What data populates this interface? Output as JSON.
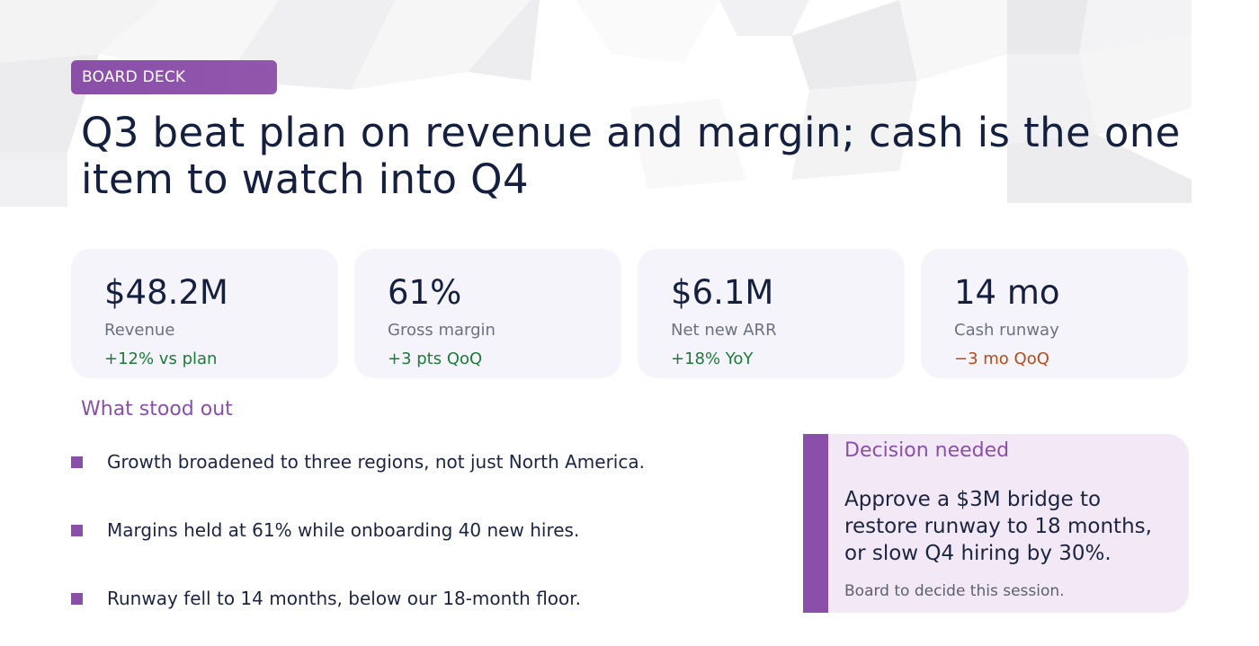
{
  "tag": "BOARD DECK",
  "headline": "Q3 beat plan on revenue and margin; cash is the one item to watch into Q4",
  "kpis": [
    {
      "value": "$48.2M",
      "label": "Revenue",
      "delta": "+12% vs plan",
      "trend": "positive"
    },
    {
      "value": "61%",
      "label": "Gross margin",
      "delta": "+3 pts QoQ",
      "trend": "positive"
    },
    {
      "value": "$6.1M",
      "label": "Net new ARR",
      "delta": "+18% YoY",
      "trend": "positive"
    },
    {
      "value": "14 mo",
      "label": "Cash runway",
      "delta": "−3 mo QoQ",
      "trend": "negative"
    }
  ],
  "highlights": {
    "title": "What stood out",
    "items": [
      "Growth broadened to three regions, not just North America.",
      "Margins held at 61% while onboarding 40 new hires.",
      "Runway fell to 14 months, below our 18-month floor."
    ]
  },
  "decision": {
    "title": "Decision needed",
    "body": "Approve a $3M bridge to restore runway to 18 months, or slow Q4 hiring by 30%.",
    "note": "Board to decide this session."
  },
  "colors": {
    "accent": "#8a4fa8",
    "positive": "#1e7a3c",
    "negative": "#b44a18",
    "card_bg": "#f5f4fa",
    "decision_bg": "#f3e9f6",
    "text": "#15203f"
  }
}
